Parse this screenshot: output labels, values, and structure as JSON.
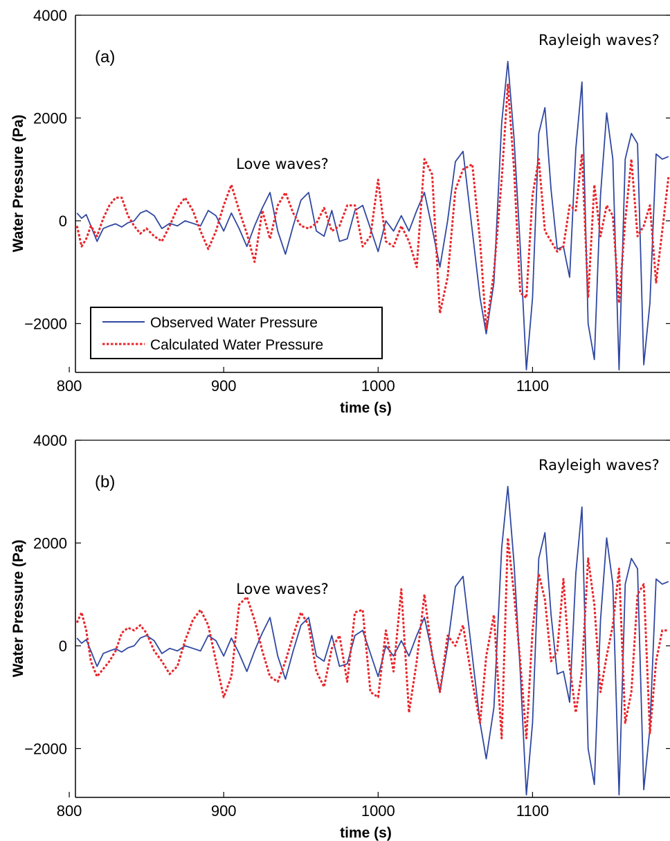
{
  "colors": {
    "observed": "#2f47a0",
    "calculated": "#e8262b",
    "axis": "#000000"
  },
  "chart_data": [
    {
      "type": "line",
      "panel_label": "(a)",
      "xlabel": "time (s)",
      "ylabel": "Water Pressure (Pa)",
      "xlim": [
        804,
        1189
      ],
      "ylim": [
        -2950,
        4000
      ],
      "xticks": [
        800,
        900,
        1000,
        1100
      ],
      "yticks": [
        -2000,
        0,
        2000,
        4000
      ],
      "ytick_labels": [
        "−2000",
        "0",
        "2000",
        "4000"
      ],
      "annotations": [
        {
          "text": "Love waves?",
          "x": 938,
          "y": 1010
        },
        {
          "text": "Rayleigh waves?",
          "x": 1143,
          "y": 3420
        }
      ],
      "legend": {
        "position": "lower-left",
        "entries": [
          "Observed Water Pressure",
          "Calculated Water Pressure"
        ]
      },
      "series": [
        {
          "name": "Observed Water Pressure",
          "style": "solid",
          "x": [
            805,
            808,
            811,
            814,
            818,
            822,
            826,
            830,
            834,
            838,
            842,
            846,
            850,
            855,
            860,
            865,
            870,
            875,
            880,
            885,
            890,
            895,
            900,
            905,
            910,
            915,
            920,
            925,
            930,
            935,
            940,
            945,
            950,
            955,
            960,
            965,
            970,
            975,
            980,
            985,
            990,
            995,
            1000,
            1005,
            1010,
            1015,
            1020,
            1025,
            1030,
            1035,
            1040,
            1045,
            1050,
            1055,
            1061,
            1066,
            1070,
            1075,
            1080,
            1084,
            1088,
            1092,
            1096,
            1100,
            1104,
            1108,
            1112,
            1116,
            1120,
            1124,
            1128,
            1132,
            1136,
            1140,
            1144,
            1148,
            1152,
            1156,
            1160,
            1164,
            1168,
            1172,
            1176,
            1180,
            1184,
            1188
          ],
          "y": [
            150,
            50,
            120,
            -100,
            -400,
            -150,
            -100,
            -60,
            -120,
            -40,
            0,
            150,
            200,
            100,
            -150,
            -50,
            -100,
            0,
            -50,
            -100,
            200,
            100,
            -200,
            150,
            -150,
            -500,
            -100,
            250,
            550,
            -200,
            -650,
            -100,
            400,
            550,
            -200,
            -300,
            200,
            -400,
            -350,
            200,
            300,
            -150,
            -600,
            0,
            -200,
            100,
            -200,
            200,
            550,
            -150,
            -900,
            0,
            1150,
            1350,
            -200,
            -1500,
            -2200,
            -1200,
            1900,
            3100,
            1600,
            -500,
            -2900,
            -1500,
            1700,
            2200,
            600,
            -550,
            -500,
            -1100,
            1400,
            2700,
            -2000,
            -2700,
            500,
            2100,
            1200,
            -2900,
            1200,
            1700,
            1500,
            -2800,
            -1600,
            1300,
            1200,
            1250
          ]
        },
        {
          "name": "Calculated Water Pressure",
          "style": "dotted",
          "x": [
            805,
            808,
            811,
            814,
            818,
            822,
            826,
            830,
            834,
            838,
            842,
            846,
            850,
            855,
            860,
            865,
            870,
            875,
            880,
            885,
            890,
            895,
            900,
            905,
            910,
            915,
            920,
            925,
            930,
            935,
            940,
            945,
            950,
            955,
            960,
            965,
            970,
            975,
            980,
            985,
            990,
            995,
            1000,
            1005,
            1010,
            1015,
            1020,
            1025,
            1030,
            1035,
            1040,
            1045,
            1050,
            1055,
            1061,
            1066,
            1070,
            1075,
            1080,
            1084,
            1088,
            1092,
            1096,
            1100,
            1104,
            1108,
            1112,
            1116,
            1120,
            1124,
            1128,
            1132,
            1136,
            1140,
            1144,
            1148,
            1152,
            1156,
            1160,
            1164,
            1168,
            1172,
            1176,
            1180,
            1184,
            1188
          ],
          "y": [
            -100,
            -500,
            -350,
            -100,
            -300,
            50,
            300,
            450,
            450,
            100,
            -100,
            -250,
            -150,
            -300,
            -400,
            -100,
            250,
            450,
            200,
            -200,
            -550,
            -200,
            300,
            700,
            200,
            -250,
            -800,
            200,
            -350,
            300,
            550,
            150,
            -100,
            -150,
            -50,
            250,
            -200,
            -100,
            300,
            300,
            -500,
            -300,
            800,
            -400,
            -500,
            -100,
            -400,
            -900,
            1200,
            900,
            -1800,
            -1100,
            600,
            1000,
            1100,
            -400,
            -2100,
            -1000,
            800,
            2650,
            1000,
            -1400,
            -1500,
            500,
            1200,
            -200,
            -400,
            -600,
            -500,
            300,
            200,
            1300,
            -1500,
            700,
            -300,
            300,
            100,
            -1600,
            0,
            1200,
            -300,
            -100,
            300,
            -1200,
            -200,
            850
          ]
        }
      ]
    },
    {
      "type": "line",
      "panel_label": "(b)",
      "xlabel": "time (s)",
      "ylabel": "Water Pressure (Pa)",
      "xlim": [
        804,
        1189
      ],
      "ylim": [
        -2950,
        4000
      ],
      "xticks": [
        800,
        900,
        1000,
        1100
      ],
      "yticks": [
        -2000,
        0,
        2000,
        4000
      ],
      "ytick_labels": [
        "−2000",
        "0",
        "2000",
        "4000"
      ],
      "annotations": [
        {
          "text": "Love waves?",
          "x": 938,
          "y": 1010
        },
        {
          "text": "Rayleigh waves?",
          "x": 1143,
          "y": 3420
        }
      ],
      "series": [
        {
          "name": "Observed Water Pressure",
          "style": "solid",
          "x": [
            805,
            808,
            811,
            814,
            818,
            822,
            826,
            830,
            834,
            838,
            842,
            846,
            850,
            855,
            860,
            865,
            870,
            875,
            880,
            885,
            890,
            895,
            900,
            905,
            910,
            915,
            920,
            925,
            930,
            935,
            940,
            945,
            950,
            955,
            960,
            965,
            970,
            975,
            980,
            985,
            990,
            995,
            1000,
            1005,
            1010,
            1015,
            1020,
            1025,
            1030,
            1035,
            1040,
            1045,
            1050,
            1055,
            1061,
            1066,
            1070,
            1075,
            1080,
            1084,
            1088,
            1092,
            1096,
            1100,
            1104,
            1108,
            1112,
            1116,
            1120,
            1124,
            1128,
            1132,
            1136,
            1140,
            1144,
            1148,
            1152,
            1156,
            1160,
            1164,
            1168,
            1172,
            1176,
            1180,
            1184,
            1188
          ],
          "y": [
            150,
            50,
            120,
            -100,
            -400,
            -150,
            -100,
            -60,
            -120,
            -40,
            0,
            150,
            200,
            100,
            -150,
            -50,
            -100,
            0,
            -50,
            -100,
            200,
            100,
            -200,
            150,
            -150,
            -500,
            -100,
            250,
            550,
            -200,
            -650,
            -100,
            400,
            550,
            -200,
            -300,
            200,
            -400,
            -350,
            200,
            300,
            -150,
            -600,
            0,
            -200,
            100,
            -200,
            200,
            550,
            -150,
            -900,
            0,
            1150,
            1350,
            -200,
            -1500,
            -2200,
            -1200,
            1900,
            3100,
            1600,
            -500,
            -2900,
            -1500,
            1700,
            2200,
            600,
            -550,
            -500,
            -1100,
            1400,
            2700,
            -2000,
            -2700,
            500,
            2100,
            1200,
            -2900,
            1200,
            1700,
            1500,
            -2800,
            -1600,
            1300,
            1200,
            1250
          ]
        },
        {
          "name": "Calculated Water Pressure",
          "style": "dotted",
          "x": [
            805,
            808,
            811,
            814,
            818,
            822,
            826,
            830,
            834,
            838,
            842,
            846,
            850,
            855,
            860,
            865,
            870,
            875,
            880,
            885,
            890,
            895,
            900,
            905,
            910,
            915,
            920,
            925,
            930,
            935,
            940,
            945,
            950,
            955,
            960,
            965,
            970,
            975,
            980,
            985,
            990,
            995,
            1000,
            1005,
            1010,
            1015,
            1020,
            1025,
            1030,
            1035,
            1040,
            1045,
            1050,
            1055,
            1061,
            1066,
            1070,
            1075,
            1080,
            1084,
            1088,
            1092,
            1096,
            1100,
            1104,
            1108,
            1112,
            1116,
            1120,
            1124,
            1128,
            1132,
            1136,
            1140,
            1144,
            1148,
            1152,
            1156,
            1160,
            1164,
            1168,
            1172,
            1176,
            1180,
            1184,
            1188
          ],
          "y": [
            450,
            650,
            300,
            -300,
            -600,
            -450,
            -300,
            -100,
            250,
            350,
            300,
            400,
            250,
            -100,
            -300,
            -550,
            -400,
            100,
            500,
            700,
            400,
            -300,
            -1000,
            -600,
            800,
            950,
            500,
            -100,
            -600,
            -700,
            -300,
            200,
            650,
            400,
            -500,
            -800,
            -50,
            200,
            -700,
            650,
            700,
            -900,
            -1000,
            300,
            -500,
            1100,
            -1300,
            -300,
            1000,
            -200,
            -900,
            200,
            0,
            400,
            -700,
            -1500,
            -200,
            600,
            -1800,
            2100,
            1000,
            -300,
            -1800,
            300,
            1400,
            900,
            -300,
            -100,
            1300,
            -400,
            -1300,
            -500,
            1700,
            800,
            -900,
            -200,
            400,
            1500,
            -1500,
            -900,
            1000,
            1200,
            -1700,
            -300,
            300,
            300
          ]
        }
      ]
    }
  ]
}
